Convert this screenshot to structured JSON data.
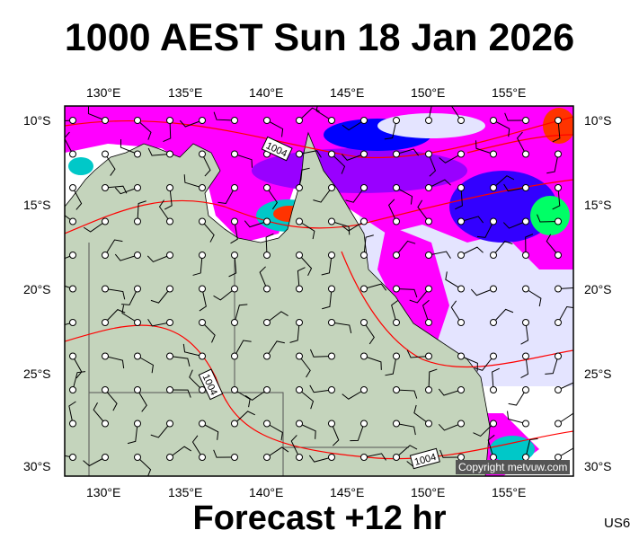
{
  "header": {
    "title": "1000 AEST Sun 18 Jan 2026"
  },
  "footer": {
    "forecast": "Forecast +12 hr",
    "model_code": "US6",
    "copyright": "Copyright metvuw.com"
  },
  "axes": {
    "lon_ticks": [
      "130°E",
      "135°E",
      "140°E",
      "145°E",
      "150°E",
      "155°E"
    ],
    "lat_ticks": [
      "10°S",
      "15°S",
      "20°S",
      "25°S",
      "30°S"
    ]
  },
  "isobars": {
    "labels": [
      "1004",
      "1004",
      "1004"
    ],
    "color": "#ff0000"
  },
  "colors": {
    "land": "#c4d4bc",
    "sea_dry": "#ffffff",
    "light_rain": "#e4e4ff",
    "rain": "#ff00ff",
    "moderate": "#9900ff",
    "heavy": "#0000ff",
    "very_heavy": "#00c8c8",
    "intense": "#00ff66",
    "extreme": "#ff3300",
    "borders": "#555555"
  }
}
